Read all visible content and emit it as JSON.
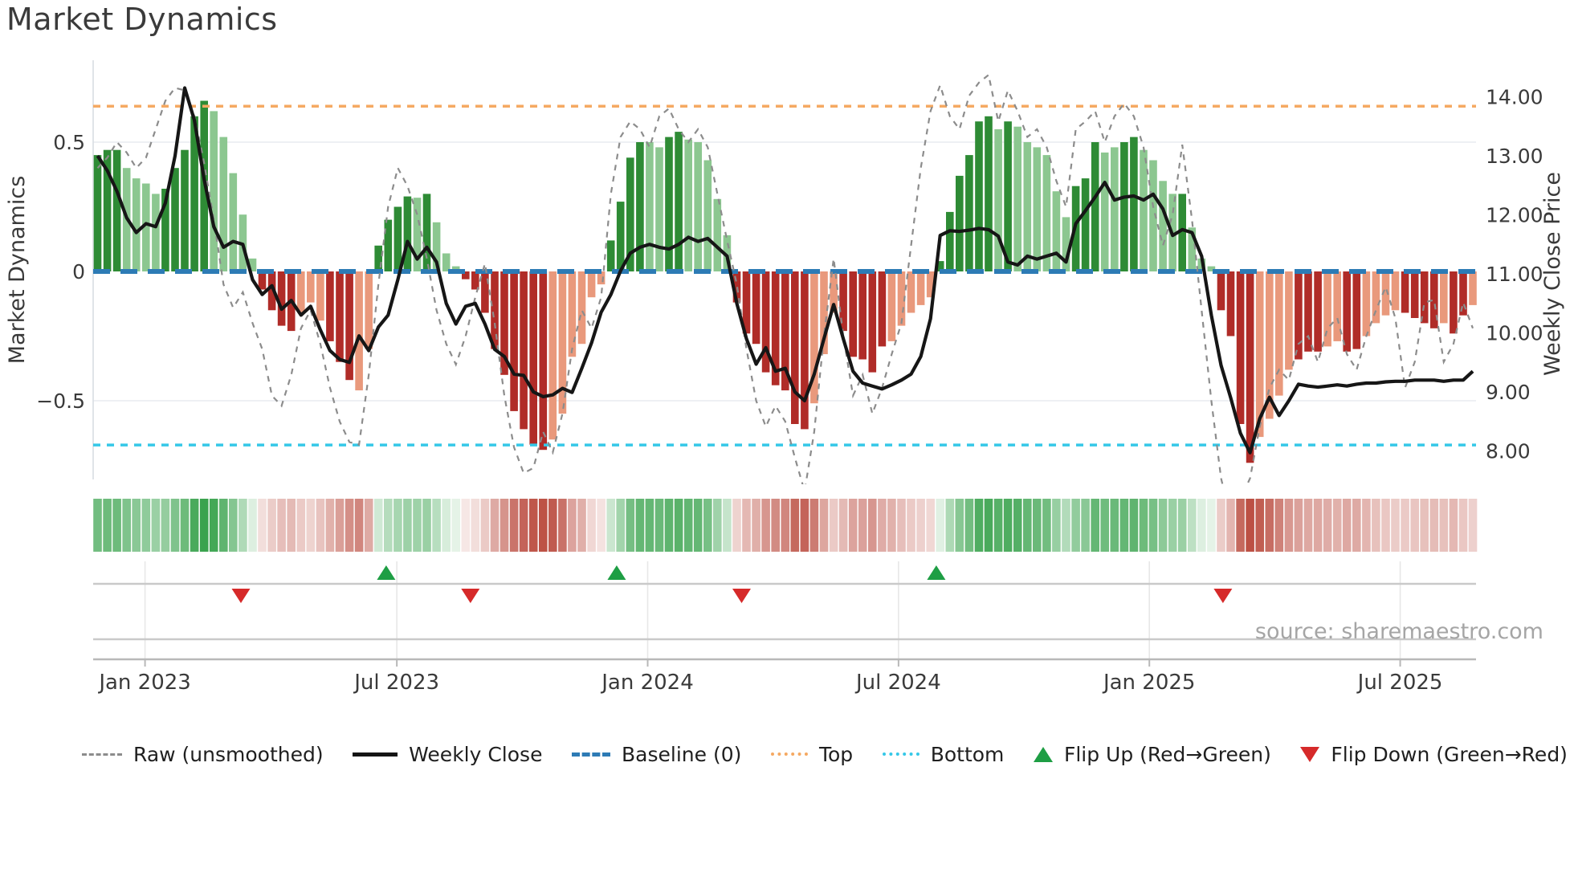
{
  "page_title": "Market Dynamics",
  "source_text": "source: sharemaestro.com",
  "legend": {
    "items": [
      {
        "label": "Raw (unsmoothed)",
        "glyph": "raw-dashed-line"
      },
      {
        "label": "Weekly Close",
        "glyph": "solid-black-line"
      },
      {
        "label": "Baseline (0)",
        "glyph": "blue-dashes"
      },
      {
        "label": "Top",
        "glyph": "orange-dots"
      },
      {
        "label": "Bottom",
        "glyph": "cyan-dots"
      },
      {
        "label": "Flip Up (Red→Green)",
        "glyph": "green-up-triangle"
      },
      {
        "label": "Flip Down (Green→Red)",
        "glyph": "red-down-triangle"
      }
    ]
  },
  "chart_data": {
    "type": "bar",
    "title": "Market Dynamics",
    "ylabel_left": "Market Dynamics",
    "ylabel_right": "Weekly Close Price",
    "ylim_left": [
      -0.82,
      0.82
    ],
    "yticks_left": [
      {
        "v": 0.5,
        "label": "0.5"
      },
      {
        "v": 0,
        "label": "0"
      },
      {
        "v": -0.5,
        "label": "−0.5"
      }
    ],
    "yticks_right": [
      {
        "p": 14,
        "label": "14.00"
      },
      {
        "p": 13,
        "label": "13.00"
      },
      {
        "p": 12,
        "label": "12.00"
      },
      {
        "p": 11,
        "label": "11.00"
      },
      {
        "p": 10,
        "label": "10.00"
      },
      {
        "p": 9,
        "label": "9.00"
      },
      {
        "p": 8,
        "label": "8.00"
      }
    ],
    "x_tick_labels": [
      "Jan 2023",
      "Jul 2023",
      "Jan 2024",
      "Jul 2024",
      "Jan 2025",
      "Jul 2025"
    ],
    "x_tick_weeks": [
      4.9,
      30.9,
      56.8,
      82.7,
      108.6,
      134.5
    ],
    "baseline_value": 0,
    "top_line_price": 13.84,
    "bottom_line_price": 8.1,
    "grid_values": [
      0.5,
      -0.5
    ],
    "legend_position": "bottom",
    "bars": {
      "values": [
        0.45,
        0.47,
        0.47,
        0.4,
        0.36,
        0.34,
        0.3,
        0.32,
        0.4,
        0.47,
        0.6,
        0.66,
        0.62,
        0.52,
        0.38,
        0.22,
        0.05,
        -0.07,
        -0.15,
        -0.21,
        -0.23,
        -0.16,
        -0.12,
        -0.19,
        -0.27,
        -0.35,
        -0.42,
        -0.46,
        -0.3,
        0.1,
        0.2,
        0.25,
        0.29,
        0.285,
        0.3,
        0.19,
        0.07,
        0.02,
        -0.03,
        -0.07,
        -0.16,
        -0.3,
        -0.4,
        -0.54,
        -0.61,
        -0.67,
        -0.69,
        -0.65,
        -0.55,
        -0.33,
        -0.28,
        -0.1,
        -0.05,
        0.12,
        0.27,
        0.44,
        0.5,
        0.5,
        0.48,
        0.52,
        0.54,
        0.51,
        0.5,
        0.43,
        0.28,
        0.14,
        -0.12,
        -0.24,
        -0.28,
        -0.39,
        -0.44,
        -0.46,
        -0.59,
        -0.61,
        -0.51,
        -0.32,
        -0.16,
        -0.23,
        -0.33,
        -0.34,
        -0.39,
        -0.29,
        -0.27,
        -0.21,
        -0.16,
        -0.13,
        -0.1,
        0.04,
        0.23,
        0.37,
        0.45,
        0.58,
        0.6,
        0.55,
        0.58,
        0.56,
        0.5,
        0.48,
        0.45,
        0.31,
        0.21,
        0.33,
        0.36,
        0.5,
        0.46,
        0.48,
        0.5,
        0.52,
        0.47,
        0.43,
        0.35,
        0.3,
        0.3,
        0.17,
        0.05,
        0.02,
        -0.15,
        -0.25,
        -0.59,
        -0.74,
        -0.64,
        -0.57,
        -0.48,
        -0.38,
        -0.34,
        -0.31,
        -0.31,
        -0.29,
        -0.27,
        -0.31,
        -0.3,
        -0.25,
        -0.2,
        -0.17,
        -0.15,
        -0.16,
        -0.18,
        -0.2,
        -0.22,
        -0.2,
        -0.24,
        -0.17,
        -0.13
      ],
      "shades": "DDDLLLLDDDDDLLLLLDDDDLLLDDDLLDDDDLDLLLDDDDDDDDDLLLLLLDDDDLLDDLLLLLDDDDDDDDLLLDDDDDLLLLLDDDDDDLDLLLLLLDDDLLDDLLLLDLLLDDDDLLLLDDDLLDDLLLLDDDDLDDL"
    },
    "raw_series": [
      0.4,
      0.44,
      0.5,
      0.46,
      0.4,
      0.44,
      0.55,
      0.66,
      0.71,
      0.7,
      0.6,
      0.42,
      0.2,
      -0.05,
      -0.14,
      -0.08,
      -0.2,
      -0.3,
      -0.48,
      -0.52,
      -0.4,
      -0.22,
      -0.15,
      -0.28,
      -0.45,
      -0.58,
      -0.66,
      -0.67,
      -0.4,
      -0.05,
      0.25,
      0.4,
      0.33,
      0.22,
      0.05,
      -0.15,
      -0.28,
      -0.36,
      -0.25,
      -0.1,
      0.03,
      -0.2,
      -0.48,
      -0.68,
      -0.78,
      -0.76,
      -0.62,
      -0.7,
      -0.55,
      -0.3,
      -0.15,
      -0.22,
      -0.1,
      0.3,
      0.52,
      0.58,
      0.55,
      0.48,
      0.6,
      0.63,
      0.55,
      0.5,
      0.55,
      0.48,
      0.3,
      0.12,
      -0.05,
      -0.3,
      -0.5,
      -0.6,
      -0.52,
      -0.58,
      -0.72,
      -0.85,
      -0.62,
      -0.25,
      0.05,
      -0.25,
      -0.48,
      -0.4,
      -0.55,
      -0.45,
      -0.32,
      -0.2,
      0.1,
      0.4,
      0.62,
      0.72,
      0.6,
      0.55,
      0.68,
      0.73,
      0.76,
      0.58,
      0.7,
      0.62,
      0.52,
      0.55,
      0.48,
      0.35,
      0.25,
      0.55,
      0.58,
      0.62,
      0.5,
      0.6,
      0.65,
      0.6,
      0.48,
      0.25,
      0.1,
      0.22,
      0.49,
      0.2,
      -0.15,
      -0.5,
      -0.8,
      -0.95,
      -0.88,
      -0.8,
      -0.6,
      -0.45,
      -0.38,
      -0.42,
      -0.28,
      -0.25,
      -0.35,
      -0.22,
      -0.18,
      -0.32,
      -0.38,
      -0.25,
      -0.15,
      -0.06,
      -0.18,
      -0.45,
      -0.35,
      -0.12,
      -0.11,
      -0.35,
      -0.28,
      -0.12,
      -0.22
    ],
    "close_series": [
      13.0,
      12.75,
      12.4,
      11.95,
      11.7,
      11.85,
      11.8,
      12.2,
      13.0,
      14.15,
      13.6,
      12.6,
      11.8,
      11.45,
      11.55,
      11.5,
      10.9,
      10.65,
      10.8,
      10.4,
      10.55,
      10.3,
      10.45,
      10.05,
      9.7,
      9.55,
      9.5,
      9.95,
      9.7,
      10.1,
      10.3,
      10.9,
      11.55,
      11.25,
      11.45,
      11.2,
      10.5,
      10.15,
      10.45,
      10.5,
      10.15,
      9.72,
      9.6,
      9.3,
      9.28,
      9.0,
      8.92,
      8.95,
      9.06,
      8.99,
      9.4,
      9.83,
      10.35,
      10.65,
      11.05,
      11.35,
      11.45,
      11.5,
      11.45,
      11.42,
      11.5,
      11.62,
      11.55,
      11.6,
      11.45,
      11.3,
      10.5,
      9.9,
      9.47,
      9.75,
      9.35,
      9.4,
      9.0,
      8.85,
      9.3,
      9.9,
      10.48,
      9.9,
      9.35,
      9.15,
      9.1,
      9.05,
      9.12,
      9.2,
      9.3,
      9.6,
      10.24,
      11.65,
      11.73,
      11.72,
      11.74,
      11.77,
      11.75,
      11.64,
      11.2,
      11.15,
      11.3,
      11.25,
      11.3,
      11.35,
      11.2,
      11.85,
      12.07,
      12.3,
      12.55,
      12.25,
      12.3,
      12.32,
      12.25,
      12.35,
      12.1,
      11.65,
      11.75,
      11.7,
      11.3,
      10.3,
      9.45,
      8.9,
      8.3,
      7.97,
      8.55,
      8.91,
      8.6,
      8.85,
      9.13,
      9.1,
      9.08,
      9.1,
      9.12,
      9.1,
      9.13,
      9.15,
      9.15,
      9.17,
      9.18,
      9.18,
      9.2,
      9.2,
      9.2,
      9.18,
      9.2,
      9.2,
      9.35
    ],
    "flip_up_weeks": [
      29.8,
      53.6,
      86.6
    ],
    "flip_down_weeks": [
      14.8,
      38.5,
      66.5,
      116.2
    ],
    "colors": {
      "bar_pos_dark": "#2e8b35",
      "bar_pos_light": "#8cc790",
      "bar_neg_dark": "#b02c28",
      "bar_neg_light": "#e9997c",
      "close_line": "#161616",
      "raw_line": "#8c8c8c",
      "baseline": "#2d7bb5",
      "top_line": "#f5a962",
      "bottom_line": "#35c8e8",
      "flip_up": "#1e9e44",
      "flip_down": "#d62a2a",
      "heat_pos_strong": "#2f9e44",
      "heat_neg_strong": "#bc5044",
      "grid": "#eef0f4",
      "spine": "#d9dde2",
      "axis_text": "#3a3a3a",
      "marker_grid": "#c9c9c9",
      "source_text": "#a5a5a5"
    }
  }
}
